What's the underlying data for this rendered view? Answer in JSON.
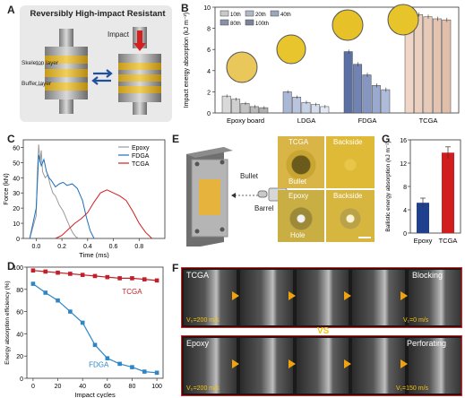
{
  "panels": {
    "A": {
      "letter": "A",
      "title": "Reversibly High-impact Resistant",
      "impact_label": "Impact",
      "skeleton_label": "Skeleton layer",
      "buffer_label": "Buffer layer"
    },
    "B": {
      "letter": "B",
      "legend": [
        "10th",
        "20th",
        "40th",
        "80th",
        "100th"
      ]
    },
    "C": {
      "letter": "C"
    },
    "D": {
      "letter": "D"
    },
    "E": {
      "letter": "E",
      "bullet_label": "Bullet",
      "barrel_label": "Barrel",
      "photo_labels": {
        "tl": "TCGA",
        "tr": "Backside",
        "tl_bottom": "Bullet",
        "bl": "Epoxy",
        "br": "Backside",
        "bl_bottom": "Hole"
      }
    },
    "F": {
      "letter": "F",
      "top_label": "TCGA",
      "top_right_label": "Blocking",
      "top_v0": "V₀=200 m/s",
      "top_v1": "V₁=0 m/s",
      "vs": "VS",
      "bottom_label": "Epoxy",
      "bottom_right_label": "Perforating",
      "bottom_v0": "V₀=200 m/s",
      "bottom_v1": "V₁=150 m/s"
    },
    "G": {
      "letter": "G"
    }
  },
  "chart_data": [
    {
      "id": "B",
      "type": "bar",
      "ylabel": "Impact energy absorption (kJ m⁻²)",
      "ylim": [
        0,
        10
      ],
      "yticks": [
        0,
        2,
        4,
        6,
        8,
        10
      ],
      "categories": [
        "Epoxy board",
        "LDGA",
        "FDGA",
        "TCGA"
      ],
      "series": [
        {
          "name": "10th",
          "values": [
            1.6,
            2.0,
            5.8,
            9.6
          ]
        },
        {
          "name": "20th",
          "values": [
            1.3,
            1.5,
            4.6,
            9.3
          ]
        },
        {
          "name": "40th",
          "values": [
            0.9,
            1.0,
            3.6,
            9.1
          ]
        },
        {
          "name": "80th",
          "values": [
            0.6,
            0.8,
            2.6,
            8.9
          ]
        },
        {
          "name": "100th",
          "values": [
            0.5,
            0.6,
            2.2,
            8.8
          ]
        }
      ],
      "errors": [
        0.15,
        0.15,
        0.2,
        0.2
      ]
    },
    {
      "id": "C",
      "type": "line",
      "xlabel": "Time (ms)",
      "ylabel": "Force (kN)",
      "xlim": [
        -0.1,
        1.0
      ],
      "ylim": [
        0,
        65
      ],
      "xticks": [
        0.0,
        0.2,
        0.4,
        0.6,
        0.8
      ],
      "yticks": [
        0,
        10,
        20,
        30,
        40,
        50,
        60
      ],
      "series": [
        {
          "name": "Epoxy",
          "color": "#9a9a9a",
          "x": [
            -0.05,
            0.0,
            0.01,
            0.02,
            0.03,
            0.04,
            0.05,
            0.07,
            0.09,
            0.11,
            0.13,
            0.15,
            0.18,
            0.21,
            0.24,
            0.27,
            0.29,
            0.31,
            0.33
          ],
          "y": [
            0,
            15,
            45,
            62,
            50,
            58,
            44,
            40,
            42,
            35,
            30,
            28,
            22,
            18,
            12,
            6,
            3,
            1,
            0
          ]
        },
        {
          "name": "FDGA",
          "color": "#1a6fbf",
          "x": [
            -0.05,
            0.0,
            0.02,
            0.04,
            0.06,
            0.08,
            0.1,
            0.12,
            0.15,
            0.18,
            0.21,
            0.24,
            0.28,
            0.32,
            0.36,
            0.39,
            0.42,
            0.45
          ],
          "y": [
            0,
            20,
            55,
            48,
            52,
            44,
            40,
            38,
            34,
            36,
            37,
            35,
            36,
            33,
            25,
            14,
            5,
            0
          ]
        },
        {
          "name": "TCGA",
          "color": "#d21f1f",
          "x": [
            0.15,
            0.2,
            0.25,
            0.3,
            0.35,
            0.4,
            0.45,
            0.5,
            0.55,
            0.6,
            0.65,
            0.7,
            0.75,
            0.8,
            0.85,
            0.9
          ],
          "y": [
            0,
            2,
            6,
            10,
            13,
            17,
            24,
            30,
            32,
            30,
            28,
            25,
            18,
            10,
            4,
            0
          ]
        }
      ]
    },
    {
      "id": "D",
      "type": "line",
      "xlabel": "Impact cycles",
      "ylabel": "Energy absorption efficiency (%)",
      "xlim": [
        -5,
        105
      ],
      "ylim": [
        0,
        100
      ],
      "xticks": [
        0,
        20,
        40,
        60,
        80,
        100
      ],
      "yticks": [
        0,
        20,
        40,
        60,
        80,
        100
      ],
      "series": [
        {
          "name": "TCGA",
          "color": "#c0202a",
          "x": [
            0,
            10,
            20,
            30,
            40,
            50,
            60,
            70,
            80,
            90,
            100
          ],
          "y": [
            97,
            96,
            95,
            94,
            93,
            92,
            91,
            90,
            90,
            89,
            88
          ]
        },
        {
          "name": "FDGA",
          "color": "#2f86c6",
          "x": [
            0,
            10,
            20,
            30,
            40,
            50,
            60,
            70,
            80,
            90,
            100
          ],
          "y": [
            85,
            77,
            70,
            60,
            50,
            30,
            18,
            13,
            10,
            6,
            5
          ]
        }
      ]
    },
    {
      "id": "G",
      "type": "bar",
      "xlabel": "",
      "ylabel": "Ballistic energy absorption (kJ m⁻²)",
      "ylim": [
        0,
        16
      ],
      "yticks": [
        0,
        4,
        8,
        12,
        16
      ],
      "categories": [
        "Epoxy",
        "TCGA"
      ],
      "values": [
        5.2,
        13.8
      ],
      "errors": [
        0.8,
        1.0
      ],
      "colors": [
        "#1f3f8f",
        "#d01e1e"
      ]
    }
  ]
}
